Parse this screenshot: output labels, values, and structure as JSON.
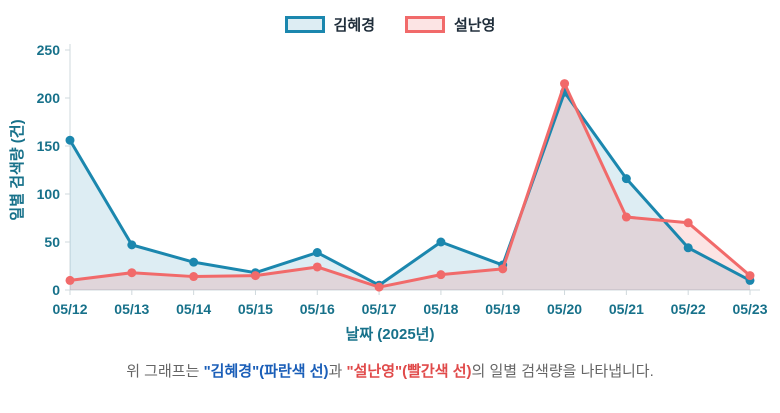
{
  "chart_data": {
    "type": "line",
    "title": "",
    "xlabel": "날짜 (2025년)",
    "ylabel": "일별 검색량 (건)",
    "ylim": [
      0,
      250
    ],
    "yticks": [
      0,
      50,
      100,
      150,
      200,
      250
    ],
    "grid": false,
    "legend_position": "top",
    "categories": [
      "05/12",
      "05/13",
      "05/14",
      "05/15",
      "05/16",
      "05/17",
      "05/18",
      "05/19",
      "05/20",
      "05/21",
      "05/22",
      "05/23"
    ],
    "series": [
      {
        "name": "김혜경",
        "color": "#1b87ae",
        "fill": "rgba(27,135,174,0.15)",
        "values": [
          156,
          47,
          29,
          18,
          39,
          5,
          50,
          26,
          206,
          116,
          44,
          10
        ]
      },
      {
        "name": "설난영",
        "color": "#f16a6a",
        "fill": "rgba(241,106,106,0.18)",
        "values": [
          10,
          18,
          14,
          15,
          24,
          3,
          16,
          22,
          215,
          76,
          70,
          15
        ]
      }
    ],
    "axis_color": "#cfd8dc",
    "tick_label_color": "#17718a"
  },
  "caption": {
    "prefix": "위 그래프는 ",
    "name1": "\"김혜경\"(파란색 선)",
    "name1_color": "#1a5eb8",
    "middle": "과 ",
    "name2": "\"설난영\"(빨간색 선)",
    "name2_color": "#e04a4a",
    "suffix": "의 일별 검색량을 나타냅니다."
  }
}
